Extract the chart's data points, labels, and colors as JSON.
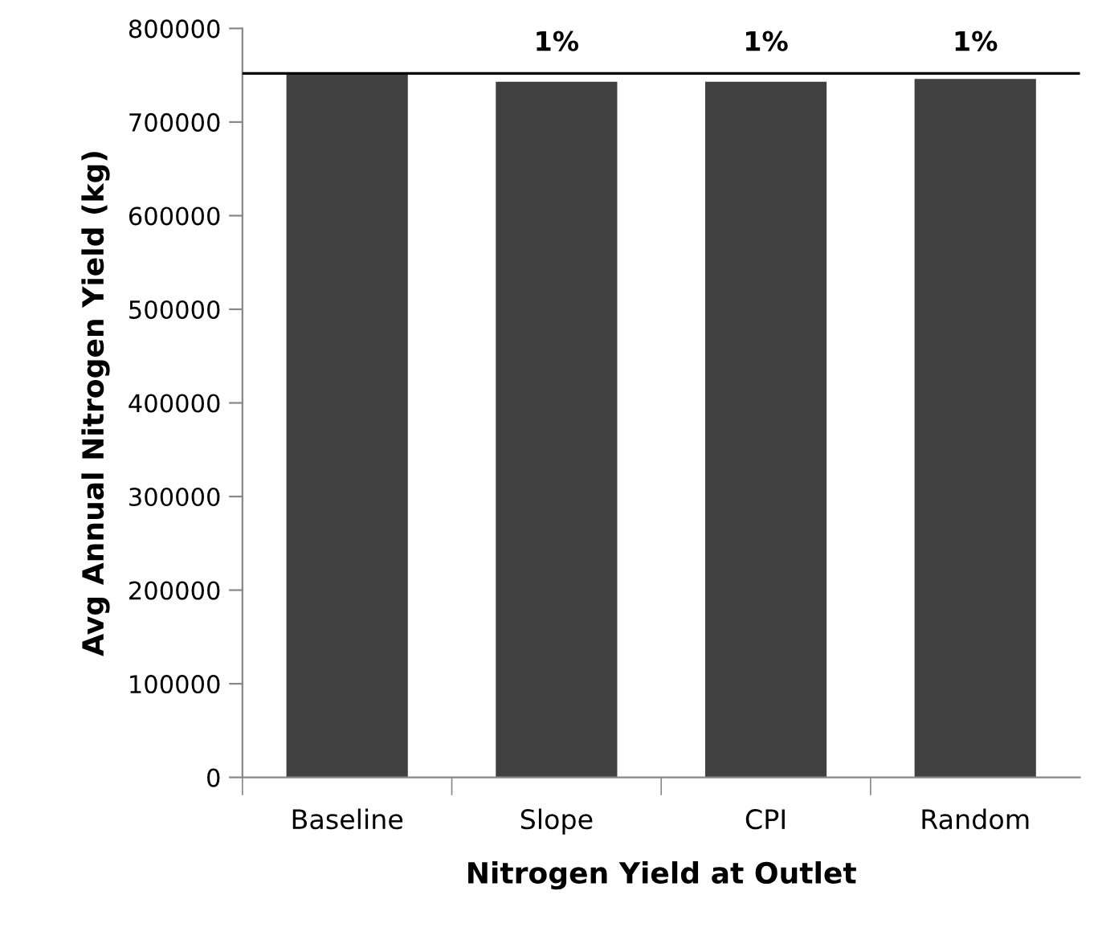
{
  "chart_data": {
    "type": "bar",
    "xlabel": "Nitrogen Yield at Outlet",
    "ylabel": "Avg Annual Nitrogen Yield (kg)",
    "categories": [
      "Baseline",
      "Slope",
      "CPI",
      "Random"
    ],
    "values": [
      752000,
      743000,
      743000,
      746000
    ],
    "annotations": [
      "1%",
      "1%",
      "1%"
    ],
    "color": "#404040",
    "ylim": [
      0,
      800000
    ],
    "yticks": [
      0,
      100000,
      200000,
      300000,
      400000,
      500000,
      600000,
      700000,
      800000
    ],
    "ref_lines": [
      {
        "axis": "y",
        "value": 752000,
        "color": "#000000"
      }
    ],
    "grid": false,
    "legend": false
  }
}
